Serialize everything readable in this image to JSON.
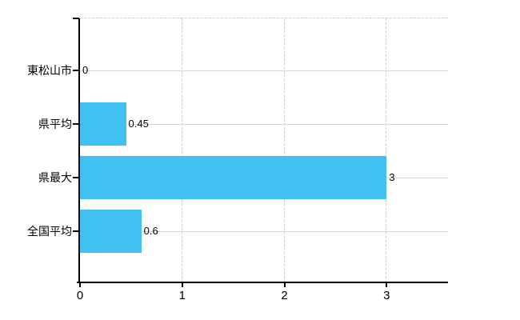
{
  "chart": {
    "background_color": "#ffffff",
    "bar_color": "#41C1F1",
    "axis_color": "#000000",
    "horizontal_grid_color": "#d8d8d8",
    "vertical_grid_color": "#cfcfcf",
    "text_color": "#000000"
  },
  "chart_data": {
    "type": "bar",
    "orientation": "horizontal",
    "title": "",
    "xlabel": "",
    "ylabel": "",
    "categories": [
      "東松山市",
      "県平均",
      "県最大",
      "全国平均"
    ],
    "values": [
      0,
      0.45,
      3,
      0.6
    ],
    "value_labels": [
      "0",
      "0.45",
      "3",
      "0.6"
    ],
    "x_ticks": [
      0,
      1,
      2,
      3
    ],
    "x_tick_labels": [
      "0",
      "1",
      "2",
      "3"
    ],
    "xlim": [
      0,
      3.6
    ],
    "grid": {
      "horizontal": "solid line at each category center",
      "vertical": "dashed line at each nonzero x tick",
      "top_border": "dashed line at plot top"
    },
    "legend": "none"
  }
}
